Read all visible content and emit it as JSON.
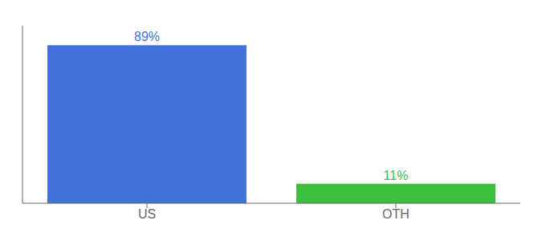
{
  "chart_data": {
    "type": "bar",
    "categories": [
      "US",
      "OTH"
    ],
    "values": [
      89,
      11
    ],
    "value_labels": [
      "89%",
      "11%"
    ],
    "colors": [
      "#4472db",
      "#3dbe3d"
    ],
    "ylim": [
      0,
      100
    ],
    "data_labels": true,
    "tick_labels": "x",
    "grid": false
  }
}
